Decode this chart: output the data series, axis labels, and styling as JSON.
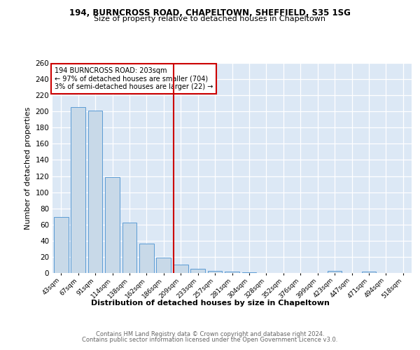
{
  "title1": "194, BURNCROSS ROAD, CHAPELTOWN, SHEFFIELD, S35 1SG",
  "title2": "Size of property relative to detached houses in Chapeltown",
  "xlabel": "Distribution of detached houses by size in Chapeltown",
  "ylabel": "Number of detached properties",
  "footer1": "Contains HM Land Registry data © Crown copyright and database right 2024.",
  "footer2": "Contains public sector information licensed under the Open Government Licence v3.0.",
  "annotation_title": "194 BURNCROSS ROAD: 203sqm",
  "annotation_line1": "← 97% of detached houses are smaller (704)",
  "annotation_line2": "3% of semi-detached houses are larger (22) →",
  "property_size": 203,
  "vline_bin_index": 7,
  "bar_labels": [
    "43sqm",
    "67sqm",
    "91sqm",
    "114sqm",
    "138sqm",
    "162sqm",
    "186sqm",
    "209sqm",
    "233sqm",
    "257sqm",
    "281sqm",
    "304sqm",
    "328sqm",
    "352sqm",
    "376sqm",
    "399sqm",
    "423sqm",
    "447sqm",
    "471sqm",
    "494sqm",
    "518sqm"
  ],
  "bar_values": [
    69,
    205,
    201,
    119,
    62,
    36,
    19,
    10,
    5,
    3,
    2,
    1,
    0,
    0,
    0,
    0,
    3,
    0,
    2,
    0,
    0
  ],
  "bar_color": "#c8d9e8",
  "bar_edge_color": "#5b9bd5",
  "vline_color": "#cc0000",
  "annotation_box_color": "#cc0000",
  "background_color": "#dce8f5",
  "ylim": [
    0,
    260
  ],
  "yticks": [
    0,
    20,
    40,
    60,
    80,
    100,
    120,
    140,
    160,
    180,
    200,
    220,
    240,
    260
  ]
}
